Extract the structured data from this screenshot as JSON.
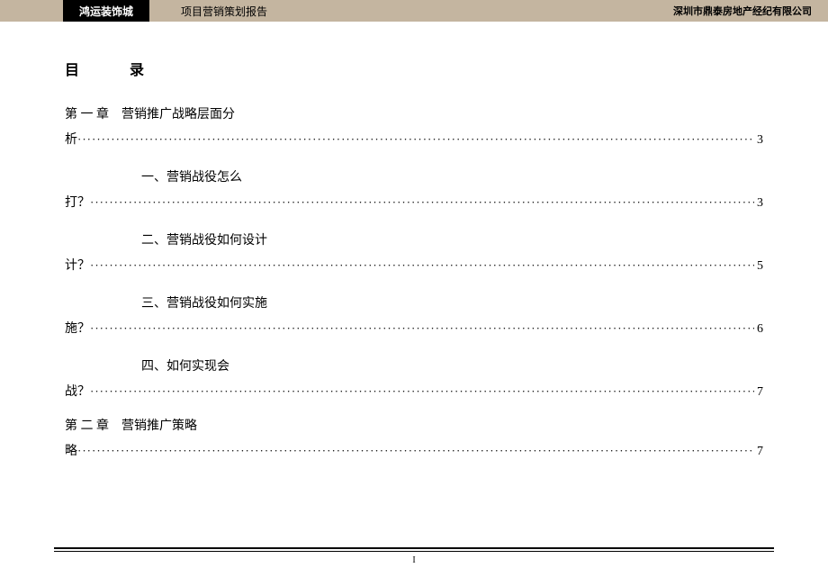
{
  "header": {
    "black_label": "鸿运装饰城",
    "title": "项目营销策划报告",
    "company": "深圳市鼎泰房地产经纪有限公司"
  },
  "toc": {
    "title": "目　录",
    "ch1_title": "第 一 章　营销推广战略层面分",
    "ch1_cont": "析",
    "ch1_page": "3",
    "s1_title": "一、营销战役怎么",
    "s1_cont": "打？",
    "s1_page": "3",
    "s2_title": "二、营销战役如何设计",
    "s2_cont": "计？",
    "s2_page": "5",
    "s3_title": "三、营销战役如何实施",
    "s3_cont": "施？",
    "s3_page": "6",
    "s4_title": "四、如何实现会",
    "s4_cont": "战？",
    "s4_page": "7",
    "ch2_title": "第 二 章　营销推广策略",
    "ch2_cont": "略",
    "ch2_page": "7"
  },
  "page_number": "I",
  "dots": "································································································································································"
}
